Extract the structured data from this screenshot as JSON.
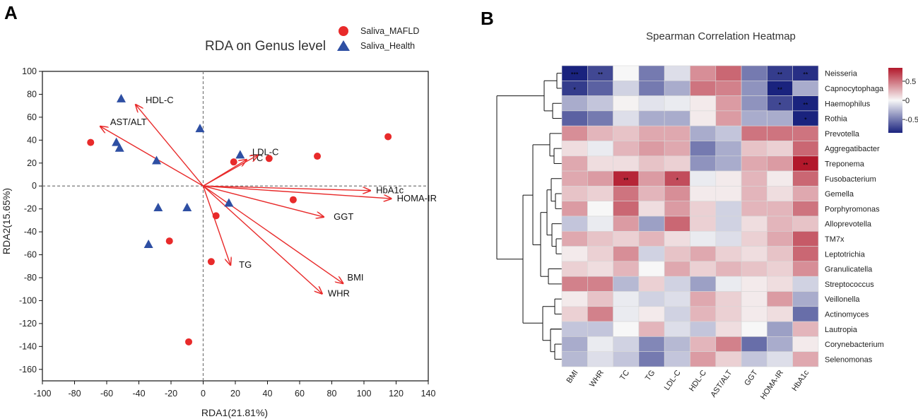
{
  "colors": {
    "mafld": "#e82a2a",
    "health": "#2e4fa3",
    "arrow": "#e82a2a",
    "high": "#b2182b",
    "mid": "#f7f7f7",
    "low": "#1a237e"
  },
  "chart_data": [
    {
      "panel": "A",
      "type": "scatter",
      "title": "RDA on Genus level",
      "xlabel": "RDA1(21.81%)",
      "ylabel": "RDA2(15.65%)",
      "xlim": [
        -100,
        140
      ],
      "ylim": [
        -170,
        100
      ],
      "xticks": [
        -100,
        -80,
        -60,
        -40,
        -20,
        0,
        20,
        40,
        60,
        80,
        100,
        120,
        140
      ],
      "yticks": [
        100,
        80,
        60,
        40,
        20,
        0,
        -20,
        -40,
        -60,
        -80,
        -100,
        -120,
        -140,
        -160
      ],
      "legend": [
        "Saliva_MAFLD",
        "Saliva_Health"
      ],
      "legend_position": "top-right",
      "series": [
        {
          "name": "Saliva_MAFLD",
          "marker": "circle",
          "points": [
            [
              -70,
              38
            ],
            [
              115,
              43
            ],
            [
              71,
              26
            ],
            [
              41,
              24
            ],
            [
              19,
              21
            ],
            [
              56,
              -12
            ],
            [
              8,
              -26
            ],
            [
              -21,
              -48
            ],
            [
              5,
              -66
            ],
            [
              -9,
              -136
            ]
          ]
        },
        {
          "name": "Saliva_Health",
          "marker": "triangle",
          "points": [
            [
              -51,
              76
            ],
            [
              -2,
              50
            ],
            [
              -54,
              38
            ],
            [
              -52,
              33
            ],
            [
              -29,
              22
            ],
            [
              23,
              27
            ],
            [
              -28,
              -19
            ],
            [
              -10,
              -19
            ],
            [
              16,
              -15
            ],
            [
              -34,
              -51
            ]
          ]
        }
      ],
      "vectors": [
        {
          "name": "HDL-C",
          "x": -42,
          "y": 71
        },
        {
          "name": "AST/ALT",
          "x": -64,
          "y": 52
        },
        {
          "name": "TC",
          "x": 27,
          "y": 23
        },
        {
          "name": "LDL-C",
          "x": 34,
          "y": 27
        },
        {
          "name": "HbA1c",
          "x": 104,
          "y": -4
        },
        {
          "name": "HOMA-IR",
          "x": 117,
          "y": -11
        },
        {
          "name": "GGT",
          "x": 75,
          "y": -27
        },
        {
          "name": "TG",
          "x": 17,
          "y": -69
        },
        {
          "name": "BMI",
          "x": 87,
          "y": -85
        },
        {
          "name": "WHR",
          "x": 74,
          "y": -94
        }
      ]
    },
    {
      "panel": "B",
      "type": "heatmap",
      "title": "Spearman Correlation Heatmap",
      "columns": [
        "BMI",
        "WHR",
        "TC",
        "TG",
        "LDL-C",
        "HDL-C",
        "AST/ALT",
        "GGT",
        "HOMA-IR",
        "HbA1c"
      ],
      "rows": [
        "Neisseria",
        "Capnocytophaga",
        "Haemophilus",
        "Rothia",
        "Prevotella",
        "Aggregatibacter",
        "Treponema",
        "Fusobacterium",
        "Gemella",
        "Porphyromonas",
        "Alloprevotella",
        "TM7x",
        "Leptotrichia",
        "Granulicatella",
        "Streptococcus",
        "Veillonella",
        "Actinomyces",
        "Lautropia",
        "Corynebacterium",
        "Selenomonas"
      ],
      "values": [
        [
          -0.85,
          -0.7,
          0.0,
          -0.5,
          -0.1,
          0.4,
          0.55,
          -0.5,
          -0.75,
          -0.8
        ],
        [
          -0.75,
          -0.6,
          -0.15,
          -0.5,
          -0.3,
          0.5,
          0.45,
          -0.4,
          -0.85,
          -0.3
        ],
        [
          -0.3,
          -0.2,
          0.02,
          -0.08,
          -0.05,
          0.05,
          0.35,
          -0.4,
          -0.7,
          -0.85
        ],
        [
          -0.6,
          -0.5,
          -0.1,
          -0.3,
          -0.3,
          0.05,
          0.35,
          -0.3,
          -0.3,
          -0.85
        ],
        [
          0.4,
          0.25,
          0.2,
          0.3,
          0.3,
          -0.3,
          -0.2,
          0.5,
          0.5,
          0.5
        ],
        [
          0.1,
          -0.05,
          0.25,
          0.35,
          0.3,
          -0.5,
          -0.3,
          0.2,
          0.15,
          0.55
        ],
        [
          0.3,
          0.1,
          0.1,
          0.2,
          0.15,
          -0.4,
          -0.3,
          0.3,
          0.35,
          0.85
        ],
        [
          0.3,
          0.35,
          0.8,
          0.35,
          0.65,
          -0.05,
          0.05,
          0.25,
          0.05,
          0.55
        ],
        [
          0.2,
          0.15,
          0.5,
          0.25,
          0.4,
          0.05,
          0.05,
          0.25,
          0.1,
          0.3
        ],
        [
          0.35,
          0.0,
          0.55,
          0.1,
          0.35,
          0.15,
          -0.15,
          0.25,
          0.25,
          0.5
        ],
        [
          -0.2,
          -0.05,
          0.35,
          -0.35,
          0.55,
          0.15,
          -0.15,
          0.1,
          0.25,
          0.2
        ],
        [
          0.3,
          0.2,
          0.15,
          0.25,
          0.1,
          -0.05,
          -0.1,
          0.15,
          0.3,
          0.6
        ],
        [
          0.05,
          0.15,
          0.4,
          -0.15,
          0.2,
          0.3,
          0.15,
          0.1,
          0.2,
          0.55
        ],
        [
          0.15,
          0.1,
          0.25,
          0.0,
          0.3,
          0.15,
          0.25,
          0.2,
          0.15,
          0.4
        ],
        [
          0.45,
          0.45,
          -0.25,
          0.15,
          -0.15,
          -0.35,
          -0.05,
          0.05,
          0.1,
          -0.15
        ],
        [
          0.05,
          0.2,
          -0.05,
          -0.15,
          -0.1,
          0.3,
          0.15,
          0.05,
          0.35,
          -0.3
        ],
        [
          0.15,
          0.45,
          -0.05,
          0.05,
          -0.15,
          0.25,
          0.15,
          0.05,
          0.1,
          -0.55
        ],
        [
          -0.2,
          -0.2,
          0.0,
          0.25,
          -0.1,
          -0.2,
          0.1,
          0.0,
          -0.35,
          0.25
        ],
        [
          -0.3,
          -0.05,
          -0.15,
          -0.45,
          -0.25,
          0.25,
          0.45,
          -0.55,
          -0.3,
          0.05
        ],
        [
          -0.25,
          -0.1,
          -0.2,
          -0.5,
          -0.2,
          0.35,
          0.15,
          -0.2,
          -0.1,
          0.3
        ]
      ],
      "significance": [
        {
          "row": "Neisseria",
          "column": "BMI",
          "stars": "***"
        },
        {
          "row": "Neisseria",
          "column": "WHR",
          "stars": "**"
        },
        {
          "row": "Neisseria",
          "column": "HOMA-IR",
          "stars": "**"
        },
        {
          "row": "Neisseria",
          "column": "HbA1c",
          "stars": "**"
        },
        {
          "row": "Capnocytophaga",
          "column": "BMI",
          "stars": "*"
        },
        {
          "row": "Capnocytophaga",
          "column": "HOMA-IR",
          "stars": "**"
        },
        {
          "row": "Haemophilus",
          "column": "HOMA-IR",
          "stars": "*"
        },
        {
          "row": "Haemophilus",
          "column": "HbA1c",
          "stars": "**"
        },
        {
          "row": "Rothia",
          "column": "HbA1c",
          "stars": "*"
        },
        {
          "row": "Treponema",
          "column": "HbA1c",
          "stars": "**"
        },
        {
          "row": "Fusobacterium",
          "column": "TC",
          "stars": "**"
        },
        {
          "row": "Fusobacterium",
          "column": "LDL-C",
          "stars": "*"
        }
      ],
      "colorbar": {
        "range": [
          -0.85,
          0.85
        ],
        "ticks": [
          0.5,
          0,
          -0.5
        ],
        "tick_labels": [
          "0.5",
          "0",
          "-0.5"
        ]
      }
    }
  ]
}
